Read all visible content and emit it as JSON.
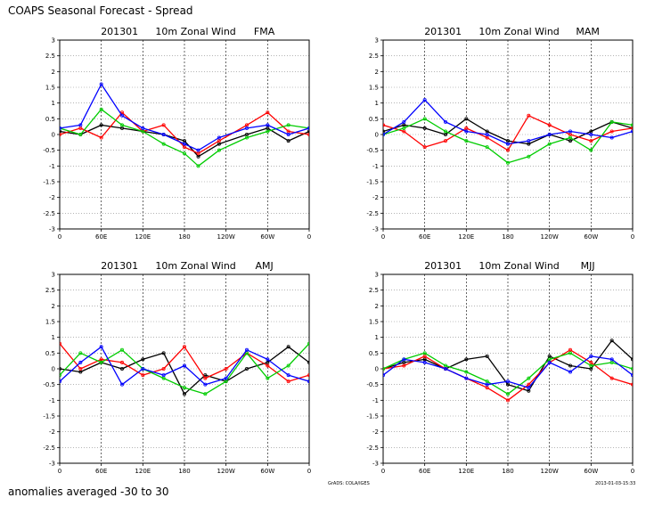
{
  "header": {
    "title": "COAPS Seasonal Forecast - Spread"
  },
  "footer": {
    "note": "anomalies averaged -30 to 30",
    "credit_left": "GrADS: COLA/IGES",
    "credit_right": "2013-01-03-15:33"
  },
  "chart_data": [
    {
      "type": "line",
      "title": {
        "init": "201301",
        "variable": "10m Zonal Wind",
        "season": "FMA"
      },
      "x_ticks": [
        "0",
        "60E",
        "120E",
        "180",
        "120W",
        "60W",
        "0"
      ],
      "y_ticks": [
        "3",
        "2.5",
        "2",
        "1.5",
        "1",
        "0.5",
        "0",
        "-0.5",
        "-1",
        "-1.5",
        "-2",
        "-2.5",
        "-3"
      ],
      "xlim_deg_east": [
        0,
        360
      ],
      "ylim": [
        -3,
        3
      ],
      "grid": true,
      "series_colors": [
        "#000000",
        "#ff0000",
        "#00cc00",
        "#0000ff"
      ],
      "series": [
        {
          "color": "#000000",
          "x": [
            0,
            30,
            60,
            90,
            120,
            150,
            180,
            200,
            230,
            270,
            300,
            330,
            360
          ],
          "values": [
            0.1,
            0.0,
            0.3,
            0.2,
            0.1,
            0.0,
            -0.2,
            -0.7,
            -0.3,
            0.0,
            0.2,
            -0.2,
            0.1
          ]
        },
        {
          "color": "#ff0000",
          "x": [
            0,
            30,
            60,
            90,
            120,
            150,
            180,
            200,
            230,
            270,
            300,
            330,
            360
          ],
          "values": [
            0.0,
            0.2,
            -0.1,
            0.7,
            0.1,
            0.3,
            -0.4,
            -0.6,
            -0.2,
            0.3,
            0.7,
            0.1,
            0.0
          ]
        },
        {
          "color": "#00cc00",
          "x": [
            0,
            30,
            60,
            90,
            120,
            150,
            180,
            200,
            230,
            270,
            300,
            330,
            360
          ],
          "values": [
            0.2,
            0.0,
            0.8,
            0.3,
            0.1,
            -0.3,
            -0.6,
            -1.0,
            -0.5,
            -0.1,
            0.1,
            0.3,
            0.2
          ]
        },
        {
          "color": "#0000ff",
          "x": [
            0,
            30,
            60,
            90,
            120,
            150,
            180,
            200,
            230,
            270,
            300,
            330,
            360
          ],
          "values": [
            0.2,
            0.3,
            1.6,
            0.6,
            0.2,
            0.0,
            -0.3,
            -0.5,
            -0.1,
            0.2,
            0.3,
            0.0,
            0.2
          ]
        }
      ]
    },
    {
      "type": "line",
      "title": {
        "init": "201301",
        "variable": "10m Zonal Wind",
        "season": "MAM"
      },
      "x_ticks": [
        "0",
        "60E",
        "120E",
        "180",
        "120W",
        "60W",
        "0"
      ],
      "y_ticks": [
        "3",
        "2.5",
        "2",
        "1.5",
        "1",
        "0.5",
        "0",
        "-0.5",
        "-1",
        "-1.5",
        "-2",
        "-2.5",
        "-3"
      ],
      "xlim_deg_east": [
        0,
        360
      ],
      "ylim": [
        -3,
        3
      ],
      "grid": true,
      "series_colors": [
        "#000000",
        "#ff0000",
        "#00cc00",
        "#0000ff"
      ],
      "series": [
        {
          "color": "#000000",
          "x": [
            0,
            30,
            60,
            90,
            120,
            150,
            180,
            210,
            240,
            270,
            300,
            330,
            360
          ],
          "values": [
            0.1,
            0.3,
            0.2,
            0.0,
            0.5,
            0.1,
            -0.2,
            -0.3,
            0.0,
            -0.2,
            0.1,
            0.4,
            0.2
          ]
        },
        {
          "color": "#ff0000",
          "x": [
            0,
            30,
            60,
            90,
            120,
            150,
            180,
            210,
            240,
            270,
            300,
            330,
            360
          ],
          "values": [
            0.3,
            0.1,
            -0.4,
            -0.2,
            0.2,
            -0.1,
            -0.5,
            0.6,
            0.3,
            0.0,
            -0.2,
            0.1,
            0.2
          ]
        },
        {
          "color": "#00cc00",
          "x": [
            0,
            30,
            60,
            90,
            120,
            150,
            180,
            210,
            240,
            270,
            300,
            330,
            360
          ],
          "values": [
            0.0,
            0.2,
            0.5,
            0.1,
            -0.2,
            -0.4,
            -0.9,
            -0.7,
            -0.3,
            -0.1,
            -0.5,
            0.4,
            0.3
          ]
        },
        {
          "color": "#0000ff",
          "x": [
            0,
            30,
            60,
            90,
            120,
            150,
            180,
            210,
            240,
            270,
            300,
            330,
            360
          ],
          "values": [
            0.0,
            0.4,
            1.1,
            0.4,
            0.1,
            0.0,
            -0.3,
            -0.2,
            0.0,
            0.1,
            0.0,
            -0.1,
            0.1
          ]
        }
      ]
    },
    {
      "type": "line",
      "title": {
        "init": "201301",
        "variable": "10m Zonal Wind",
        "season": "AMJ"
      },
      "x_ticks": [
        "0",
        "60E",
        "120E",
        "180",
        "120W",
        "60W",
        "0"
      ],
      "y_ticks": [
        "3",
        "2.5",
        "2",
        "1.5",
        "1",
        "0.5",
        "0",
        "-0.5",
        "-1",
        "-1.5",
        "-2",
        "-2.5",
        "-3"
      ],
      "xlim_deg_east": [
        0,
        360
      ],
      "ylim": [
        -3,
        3
      ],
      "grid": true,
      "series_colors": [
        "#000000",
        "#ff0000",
        "#00cc00",
        "#0000ff"
      ],
      "series": [
        {
          "color": "#000000",
          "x": [
            0,
            30,
            60,
            90,
            120,
            150,
            180,
            210,
            240,
            270,
            300,
            330,
            360
          ],
          "values": [
            0.0,
            -0.1,
            0.2,
            0.0,
            0.3,
            0.5,
            -0.8,
            -0.2,
            -0.4,
            0.0,
            0.2,
            0.7,
            0.2
          ]
        },
        {
          "color": "#ff0000",
          "x": [
            0,
            30,
            60,
            90,
            120,
            150,
            180,
            210,
            240,
            270,
            300,
            330,
            360
          ],
          "values": [
            0.8,
            0.0,
            0.3,
            0.2,
            -0.2,
            0.0,
            0.7,
            -0.3,
            0.0,
            0.5,
            0.1,
            -0.4,
            -0.2
          ]
        },
        {
          "color": "#00cc00",
          "x": [
            0,
            30,
            60,
            90,
            120,
            150,
            180,
            210,
            240,
            270,
            300,
            330,
            360
          ],
          "values": [
            -0.2,
            0.5,
            0.2,
            0.6,
            0.0,
            -0.3,
            -0.6,
            -0.8,
            -0.4,
            0.5,
            -0.3,
            0.1,
            0.8
          ]
        },
        {
          "color": "#0000ff",
          "x": [
            0,
            30,
            60,
            90,
            120,
            150,
            180,
            210,
            240,
            270,
            300,
            330,
            360
          ],
          "values": [
            -0.4,
            0.2,
            0.7,
            -0.5,
            0.0,
            -0.2,
            0.1,
            -0.5,
            -0.3,
            0.6,
            0.3,
            -0.2,
            -0.4
          ]
        }
      ]
    },
    {
      "type": "line",
      "title": {
        "init": "201301",
        "variable": "10m Zonal Wind",
        "season": "MJJ"
      },
      "x_ticks": [
        "0",
        "60E",
        "120E",
        "180",
        "120W",
        "60W",
        "0"
      ],
      "y_ticks": [
        "3",
        "2.5",
        "2",
        "1.5",
        "1",
        "0.5",
        "0",
        "-0.5",
        "-1",
        "-1.5",
        "-2",
        "-2.5",
        "-3"
      ],
      "xlim_deg_east": [
        0,
        360
      ],
      "ylim": [
        -3,
        3
      ],
      "grid": true,
      "series_colors": [
        "#000000",
        "#ff0000",
        "#00cc00",
        "#0000ff"
      ],
      "series": [
        {
          "color": "#000000",
          "x": [
            0,
            30,
            60,
            90,
            120,
            150,
            180,
            210,
            240,
            270,
            300,
            330,
            360
          ],
          "values": [
            0.0,
            0.2,
            0.3,
            0.0,
            0.3,
            0.4,
            -0.5,
            -0.7,
            0.4,
            0.1,
            0.0,
            0.9,
            0.3
          ]
        },
        {
          "color": "#ff0000",
          "x": [
            0,
            30,
            60,
            90,
            120,
            150,
            180,
            210,
            240,
            270,
            300,
            330,
            360
          ],
          "values": [
            0.0,
            0.1,
            0.4,
            0.0,
            -0.3,
            -0.6,
            -1.0,
            -0.5,
            0.2,
            0.6,
            0.2,
            -0.3,
            -0.5
          ]
        },
        {
          "color": "#00cc00",
          "x": [
            0,
            30,
            60,
            90,
            120,
            150,
            180,
            210,
            240,
            270,
            300,
            330,
            360
          ],
          "values": [
            0.0,
            0.3,
            0.5,
            0.1,
            -0.1,
            -0.4,
            -0.8,
            -0.3,
            0.3,
            0.5,
            0.1,
            0.2,
            0.0
          ]
        },
        {
          "color": "#0000ff",
          "x": [
            0,
            30,
            60,
            90,
            120,
            150,
            180,
            210,
            240,
            270,
            300,
            330,
            360
          ],
          "values": [
            -0.2,
            0.3,
            0.2,
            0.0,
            -0.3,
            -0.5,
            -0.4,
            -0.6,
            0.2,
            -0.1,
            0.4,
            0.3,
            -0.2
          ]
        }
      ]
    }
  ]
}
